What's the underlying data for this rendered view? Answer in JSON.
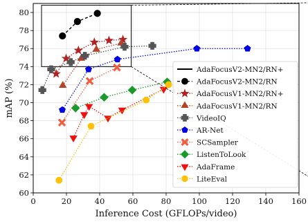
{
  "chart_data": {
    "type": "scatter",
    "xlabel": "Inference Cost (GFLOPs/video)",
    "ylabel": "mAP (%)",
    "xlim": [
      0,
      160
    ],
    "ylim": [
      60,
      81
    ],
    "xticks": [
      0,
      20,
      40,
      60,
      80,
      100,
      120,
      140,
      160
    ],
    "yticks": [
      60,
      62,
      64,
      66,
      68,
      70,
      72,
      74,
      76,
      78,
      80
    ],
    "grid": true,
    "legend_position": "lower-right",
    "inset_box": {
      "x0": 5,
      "x1": 59,
      "y0": 74,
      "y1": 80.8
    },
    "series": [
      {
        "name": "AdaFocusV2-MN2/RN+",
        "color": "#000000",
        "marker": "none",
        "style": "solid",
        "points": []
      },
      {
        "name": "AdaFocusV2-MN2/RN",
        "color": "#000000",
        "marker": "circle",
        "style": "dashed",
        "points": [
          [
            17.6,
            77.4
          ],
          [
            26.6,
            79.0
          ],
          [
            38.6,
            79.9
          ]
        ]
      },
      {
        "name": "AdaFocusV1-MN2/RN+",
        "color": "#b22222",
        "marker": "star",
        "style": "dotted",
        "points": [
          [
            13.8,
            73.2
          ],
          [
            19.8,
            74.9
          ],
          [
            27.2,
            75.8
          ],
          [
            36.8,
            76.7
          ],
          [
            45.6,
            76.9
          ],
          [
            54.0,
            77.0
          ]
        ]
      },
      {
        "name": "AdaFocusV1-MN2/RN",
        "color": "#b5432b",
        "marker": "triangle",
        "style": "dotted",
        "points": [
          [
            17.8,
            71.9
          ],
          [
            28.9,
            74.9
          ],
          [
            38.0,
            75.9
          ],
          [
            53.0,
            76.6
          ]
        ]
      },
      {
        "name": "VideoIQ",
        "color": "#555555",
        "marker": "plus",
        "style": "dotted",
        "points": [
          [
            5.5,
            71.4
          ],
          [
            10.8,
            73.7
          ],
          [
            22.6,
            74.5
          ],
          [
            31.1,
            75.2
          ],
          [
            55.0,
            76.2
          ],
          [
            71.7,
            76.3
          ]
        ]
      },
      {
        "name": "AR-Net",
        "color": "#0000e0",
        "marker": "pentagon",
        "style": "dotted",
        "points": [
          [
            17.5,
            69.2
          ],
          [
            33.3,
            73.7
          ],
          [
            50.7,
            74.8
          ],
          [
            98.5,
            76.0
          ],
          [
            129.0,
            76.0
          ]
        ]
      },
      {
        "name": "SCSampler",
        "color": "#f25c3f",
        "marker": "x",
        "style": "dotted",
        "points": [
          [
            17.3,
            67.8
          ],
          [
            34.0,
            72.4
          ],
          [
            50.4,
            73.9
          ]
        ]
      },
      {
        "name": "ListenToLook",
        "color": "#1a9a2a",
        "marker": "diamond",
        "style": "dotted",
        "points": [
          [
            25.5,
            69.4
          ],
          [
            42.7,
            70.6
          ],
          [
            59.6,
            71.4
          ],
          [
            80.6,
            72.3
          ]
        ]
      },
      {
        "name": "AdaFrame",
        "color": "#ee1111",
        "marker": "triangle-down",
        "style": "dotted",
        "points": [
          [
            24.2,
            66.1
          ],
          [
            30.7,
            68.7
          ],
          [
            33.6,
            69.6
          ],
          [
            45.0,
            68.3
          ],
          [
            53.5,
            69.2
          ],
          [
            78.5,
            71.5
          ]
        ]
      },
      {
        "name": "LiteEval",
        "color": "#ffc107",
        "marker": "octagon",
        "style": "dotted",
        "points": [
          [
            15.5,
            61.4
          ],
          [
            34.8,
            67.4
          ],
          [
            68.0,
            70.3
          ],
          [
            81.5,
            72.0
          ]
        ]
      }
    ]
  }
}
